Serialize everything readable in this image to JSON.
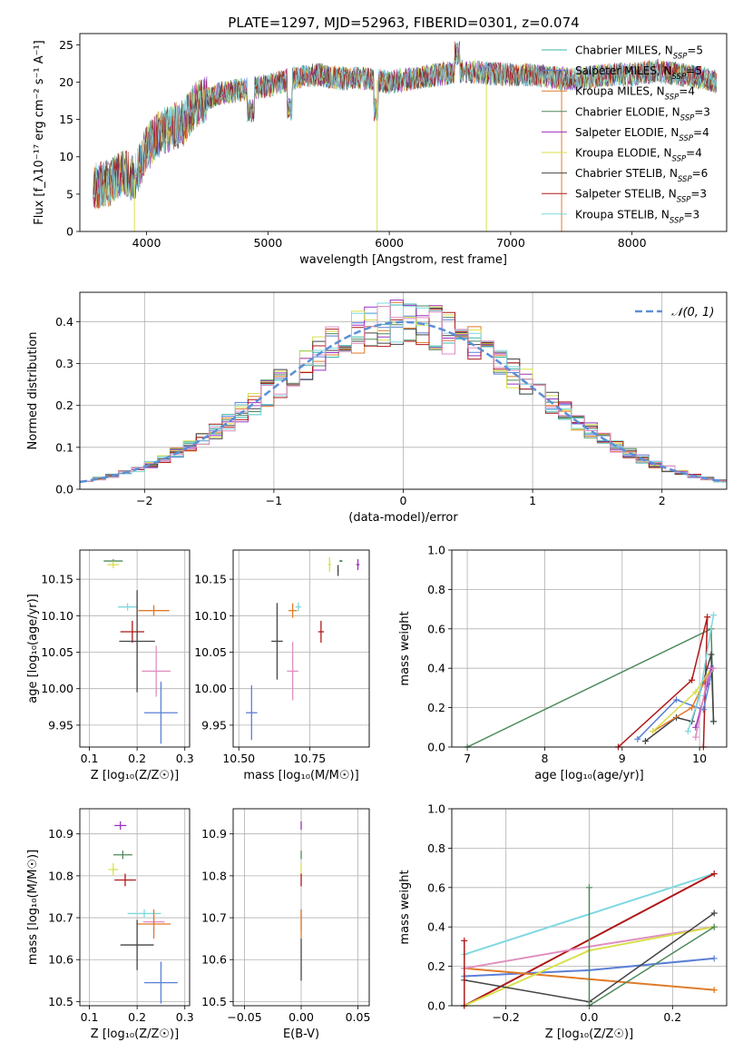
{
  "title": "PLATE=1297, MJD=52963, FIBERID=0301, z=0.074",
  "colors": {
    "Chabrier MILES": "#3ab7a8",
    "Salpeter MILES": "#5b7fd6",
    "Kroupa MILES": "#e07b28",
    "Chabrier ELODIE": "#4e8a5c",
    "Salpeter ELODIE": "#9b30c0",
    "Kroupa ELODIE": "#d8e04a",
    "Chabrier STELIB": "#444444",
    "Salpeter STELIB": "#b01818",
    "Kroupa STELIB": "#7fd8e0",
    "Extra": "#e08fc0",
    "Normal": "#5b8fd6"
  },
  "chart_data": [
    {
      "type": "line",
      "name": "spectrum",
      "xlabel": "wavelength [Angstrom, rest frame]",
      "ylabel": "Flux [f_λ10⁻¹⁷ erg cm⁻² s⁻¹ A⁻¹]",
      "xlim": [
        3450,
        8780
      ],
      "ylim": [
        0,
        26.5
      ],
      "xticks": [
        4000,
        5000,
        6000,
        7000,
        8000
      ],
      "yticks": [
        0,
        5,
        10,
        15,
        20,
        25
      ],
      "legend_position": "top-right",
      "legend": [
        {
          "text": "Chabrier MILES, N_SSP=5",
          "color": "#3ab7a8"
        },
        {
          "text": "Salpeter MILES, N_SSP=5",
          "color": "#5b7fd6"
        },
        {
          "text": "Kroupa MILES, N_SSP=4",
          "color": "#e07b28"
        },
        {
          "text": "Chabrier ELODIE, N_SSP=3",
          "color": "#4e8a5c"
        },
        {
          "text": "Salpeter ELODIE, N_SSP=4",
          "color": "#9b30c0"
        },
        {
          "text": "Kroupa ELODIE, N_SSP=4",
          "color": "#d8e04a"
        },
        {
          "text": "Chabrier STELIB, N_SSP=6",
          "color": "#444444"
        },
        {
          "text": "Salpeter STELIB, N_SSP=3",
          "color": "#b01818"
        },
        {
          "text": "Kroupa STELIB, N_SSP=3",
          "color": "#7fd8e0"
        }
      ],
      "continuum": [
        [
          3560,
          6
        ],
        [
          3700,
          6.5
        ],
        [
          3800,
          8
        ],
        [
          3900,
          7
        ],
        [
          4000,
          11
        ],
        [
          4100,
          13
        ],
        [
          4200,
          14
        ],
        [
          4300,
          14.5
        ],
        [
          4400,
          17
        ],
        [
          4600,
          18.5
        ],
        [
          4800,
          19
        ],
        [
          5000,
          19.5
        ],
        [
          5200,
          20.5
        ],
        [
          5400,
          21
        ],
        [
          5600,
          20.5
        ],
        [
          5800,
          20.5
        ],
        [
          6000,
          20
        ],
        [
          6200,
          20.5
        ],
        [
          6400,
          21
        ],
        [
          6600,
          21.5
        ],
        [
          6800,
          21.2
        ],
        [
          7000,
          21
        ],
        [
          7200,
          21
        ],
        [
          7400,
          20.5
        ],
        [
          7600,
          20.5
        ],
        [
          7800,
          21
        ],
        [
          8000,
          21
        ],
        [
          8200,
          21.5
        ],
        [
          8400,
          21
        ],
        [
          8600,
          20.5
        ],
        [
          8700,
          20
        ]
      ]
    },
    {
      "type": "line",
      "name": "residual histogram",
      "xlabel": "(data-model)/error",
      "ylabel": "Normed distribution",
      "xlim": [
        -2.5,
        2.5
      ],
      "ylim": [
        0,
        0.47
      ],
      "xticks": [
        -2,
        -1,
        0,
        1,
        2
      ],
      "yticks": [
        0.0,
        0.1,
        0.2,
        0.3,
        0.4
      ],
      "grid": true,
      "legend_position": "top-right",
      "legend_text": "𝒩(0, 1)",
      "bin_width": 0.1,
      "bin_start": -2.5
    },
    {
      "type": "scatter",
      "name": "age vs Z",
      "xlabel": "Z [log₁₀(Z/Z☉)]",
      "ylabel": "age  [log₁₀(age/yr)]",
      "xlim": [
        0.08,
        0.31
      ],
      "ylim": [
        9.92,
        10.19
      ],
      "xticks": [
        0.1,
        0.2,
        0.3
      ],
      "yticks": [
        9.95,
        10.0,
        10.05,
        10.1,
        10.15
      ],
      "grid": true,
      "points": [
        {
          "x": 0.15,
          "y": 10.175,
          "xerr": 0.04,
          "yerr": 0.005,
          "color": "#4e8a5c"
        },
        {
          "x": 0.15,
          "y": 10.17,
          "xerr": 0.025,
          "yerr": 0.01,
          "color": "#d8e04a"
        },
        {
          "x": 0.18,
          "y": 10.112,
          "xerr": 0.04,
          "yerr": 0.01,
          "color": "#7fd8e0"
        },
        {
          "x": 0.235,
          "y": 10.107,
          "xerr": 0.065,
          "yerr": 0.015,
          "color": "#e07b28"
        },
        {
          "x": 0.19,
          "y": 10.078,
          "xerr": 0.05,
          "yerr": 0.03,
          "color": "#b01818"
        },
        {
          "x": 0.2,
          "y": 10.065,
          "xerr": 0.075,
          "yerr": 0.14,
          "color": "#444444"
        },
        {
          "x": 0.24,
          "y": 10.024,
          "xerr": 0.06,
          "yerr": 0.07,
          "color": "#e08fc0"
        },
        {
          "x": 0.25,
          "y": 9.967,
          "xerr": 0.07,
          "yerr": 0.085,
          "color": "#5b7fd6"
        }
      ]
    },
    {
      "type": "scatter",
      "name": "age vs mass",
      "xlabel": "mass [log₁₀(M/M☉)]",
      "ylabel": "",
      "xlim": [
        10.48,
        10.96
      ],
      "ylim": [
        9.92,
        10.19
      ],
      "xticks": [
        10.5,
        10.75
      ],
      "xticklabels": [
        "10.50",
        "10.75"
      ],
      "yticks": [
        9.95,
        10.0,
        10.05,
        10.1,
        10.15
      ],
      "grid": true,
      "points": [
        {
          "x": 10.86,
          "y": 10.175,
          "xerr": 0.012,
          "yerr": 0.003,
          "color": "#4e8a5c"
        },
        {
          "x": 10.92,
          "y": 10.17,
          "xerr": 0.012,
          "yerr": 0.015,
          "color": "#9b30c0"
        },
        {
          "x": 10.82,
          "y": 10.17,
          "xerr": 0.01,
          "yerr": 0.02,
          "color": "#d8e04a"
        },
        {
          "x": 10.85,
          "y": 10.162,
          "xerr": 0.005,
          "yerr": 0.015,
          "color": "#444444"
        },
        {
          "x": 10.71,
          "y": 10.112,
          "xerr": 0.02,
          "yerr": 0.012,
          "color": "#7fd8e0"
        },
        {
          "x": 10.69,
          "y": 10.107,
          "xerr": 0.03,
          "yerr": 0.02,
          "color": "#e07b28"
        },
        {
          "x": 10.79,
          "y": 10.078,
          "xerr": 0.02,
          "yerr": 0.03,
          "color": "#b01818"
        },
        {
          "x": 10.635,
          "y": 10.065,
          "xerr": 0.04,
          "yerr": 0.105,
          "color": "#444444"
        },
        {
          "x": 10.69,
          "y": 10.024,
          "xerr": 0.04,
          "yerr": 0.08,
          "color": "#e08fc0"
        },
        {
          "x": 10.545,
          "y": 9.967,
          "xerr": 0.04,
          "yerr": 0.075,
          "color": "#5b7fd6"
        }
      ]
    },
    {
      "type": "line",
      "name": "mass weight vs age",
      "xlabel": "age  [log₁₀(age/yr)]",
      "ylabel": "mass weight",
      "xlim": [
        6.8,
        10.35
      ],
      "ylim": [
        0,
        1.0
      ],
      "xticks": [
        7,
        8,
        9,
        10
      ],
      "yticks": [
        0.0,
        0.2,
        0.4,
        0.6,
        0.8,
        1.0
      ],
      "grid": true,
      "series": [
        {
          "color": "#4e8a5c",
          "x": [
            7.0,
            10.15,
            10.18
          ],
          "y": [
            0.0,
            0.6,
            0.13
          ]
        },
        {
          "color": "#b01818",
          "x": [
            8.95,
            9.9,
            10.1,
            10.05
          ],
          "y": [
            0.0,
            0.34,
            0.66,
            0.0
          ]
        },
        {
          "color": "#5b7fd6",
          "x": [
            9.2,
            9.7,
            10.05,
            10.17
          ],
          "y": [
            0.04,
            0.24,
            0.19,
            0.4
          ]
        },
        {
          "color": "#444444",
          "x": [
            9.3,
            9.7,
            9.9,
            10.15,
            10.18
          ],
          "y": [
            0.03,
            0.15,
            0.13,
            0.47,
            0.13
          ]
        },
        {
          "color": "#e07b28",
          "x": [
            9.4,
            9.9,
            10.15
          ],
          "y": [
            0.08,
            0.2,
            0.4
          ]
        },
        {
          "color": "#d8e04a",
          "x": [
            9.4,
            9.95,
            10.15
          ],
          "y": [
            0.08,
            0.28,
            0.4
          ]
        },
        {
          "color": "#7fd8e0",
          "x": [
            9.85,
            10.0,
            10.18
          ],
          "y": [
            0.08,
            0.26,
            0.67
          ]
        },
        {
          "color": "#9b30c0",
          "x": [
            9.95,
            10.1,
            10.15
          ],
          "y": [
            0.1,
            0.32,
            0.4
          ]
        },
        {
          "color": "#e08fc0",
          "x": [
            9.95,
            10.1,
            10.18
          ],
          "y": [
            0.05,
            0.35,
            0.4
          ]
        }
      ]
    },
    {
      "type": "scatter",
      "name": "mass vs Z",
      "xlabel": "Z [log₁₀(Z/Z☉)]",
      "ylabel": "mass [log₁₀(M/M☉)]",
      "xlim": [
        0.08,
        0.31
      ],
      "ylim": [
        10.49,
        10.96
      ],
      "xticks": [
        0.1,
        0.2,
        0.3
      ],
      "yticks": [
        10.5,
        10.6,
        10.7,
        10.8,
        10.9
      ],
      "grid": true,
      "points": [
        {
          "x": 0.165,
          "y": 10.92,
          "xerr": 0.025,
          "yerr": 0.02,
          "color": "#9b30c0"
        },
        {
          "x": 0.17,
          "y": 10.85,
          "xerr": 0.04,
          "yerr": 0.02,
          "color": "#4e8a5c"
        },
        {
          "x": 0.15,
          "y": 10.815,
          "xerr": 0.02,
          "yerr": 0.03,
          "color": "#d8e04a"
        },
        {
          "x": 0.175,
          "y": 10.79,
          "xerr": 0.045,
          "yerr": 0.03,
          "color": "#b01818"
        },
        {
          "x": 0.215,
          "y": 10.71,
          "xerr": 0.07,
          "yerr": 0.02,
          "color": "#7fd8e0"
        },
        {
          "x": 0.235,
          "y": 10.69,
          "xerr": 0.045,
          "yerr": 0.04,
          "color": "#e08fc0"
        },
        {
          "x": 0.235,
          "y": 10.685,
          "xerr": 0.07,
          "yerr": 0.07,
          "color": "#e07b28"
        },
        {
          "x": 0.2,
          "y": 10.635,
          "xerr": 0.07,
          "yerr": 0.12,
          "color": "#444444"
        },
        {
          "x": 0.25,
          "y": 10.545,
          "xerr": 0.07,
          "yerr": 0.1,
          "color": "#5b7fd6"
        }
      ]
    },
    {
      "type": "scatter",
      "name": "mass vs E(B-V)",
      "xlabel": "E(B-V)",
      "ylabel": "",
      "xlim": [
        -0.06,
        0.06
      ],
      "ylim": [
        10.49,
        10.96
      ],
      "xticks": [
        -0.05,
        0.0,
        0.05
      ],
      "xticklabels": [
        "−0.05",
        "0.00",
        "0.05"
      ],
      "yticks": [
        10.5,
        10.6,
        10.7,
        10.8,
        10.9
      ],
      "grid": true,
      "points": [
        {
          "x": 0,
          "y": 10.92,
          "yerr": 0.02,
          "color": "#9b30c0"
        },
        {
          "x": 0,
          "y": 10.85,
          "yerr": 0.02,
          "color": "#4e8a5c"
        },
        {
          "x": 0,
          "y": 10.815,
          "yerr": 0.03,
          "color": "#d8e04a"
        },
        {
          "x": 0,
          "y": 10.79,
          "yerr": 0.03,
          "color": "#b01818"
        },
        {
          "x": 0,
          "y": 10.71,
          "yerr": 0.02,
          "color": "#7fd8e0"
        },
        {
          "x": 0,
          "y": 10.69,
          "yerr": 0.04,
          "color": "#e08fc0"
        },
        {
          "x": 0,
          "y": 10.685,
          "yerr": 0.07,
          "color": "#e07b28"
        },
        {
          "x": 0,
          "y": 10.6,
          "yerr": 0.1,
          "color": "#444444"
        }
      ]
    },
    {
      "type": "line",
      "name": "mass weight vs Z",
      "xlabel": "Z [log₁₀(Z/Z☉)]",
      "ylabel": "mass weight",
      "xlim": [
        -0.33,
        0.33
      ],
      "ylim": [
        0,
        1.0
      ],
      "xticks": [
        -0.2,
        0.0,
        0.2
      ],
      "xticklabels": [
        "−0.2",
        "0.0",
        "0.2"
      ],
      "yticks": [
        0.0,
        0.2,
        0.4,
        0.6,
        0.8,
        1.0
      ],
      "grid": true,
      "series": [
        {
          "color": "#7fd8e0",
          "x": [
            -0.3,
            0.3
          ],
          "y": [
            0.26,
            0.67
          ],
          "width": 2
        },
        {
          "color": "#b01818",
          "x": [
            -0.3,
            0.3
          ],
          "y": [
            0.0,
            0.67
          ],
          "width": 2
        },
        {
          "color": "#5b7fd6",
          "x": [
            -0.3,
            0.0,
            0.3
          ],
          "y": [
            0.15,
            0.18,
            0.24
          ],
          "width": 2
        },
        {
          "color": "#e07b28",
          "x": [
            -0.3,
            0.3
          ],
          "y": [
            0.19,
            0.08
          ],
          "width": 2
        },
        {
          "color": "#e08fc0",
          "x": [
            -0.3,
            0.0,
            0.3
          ],
          "y": [
            0.19,
            0.3,
            0.4
          ],
          "width": 2
        },
        {
          "color": "#d8e04a",
          "x": [
            -0.3,
            0.0,
            0.3
          ],
          "y": [
            0.0,
            0.28,
            0.4
          ],
          "width": 2
        },
        {
          "color": "#444444",
          "x": [
            -0.3,
            0.0,
            0.3
          ],
          "y": [
            0.13,
            0.02,
            0.47
          ],
          "width": 1.5
        },
        {
          "color": "#4e8a5c",
          "x": [
            0.0,
            0.0,
            0.3
          ],
          "y": [
            0.6,
            0.0,
            0.4
          ],
          "width": 1.5
        },
        {
          "color": "#b01818",
          "x": [
            -0.3,
            -0.3
          ],
          "y": [
            0.33,
            0.0
          ],
          "width": 1.5
        }
      ]
    }
  ]
}
